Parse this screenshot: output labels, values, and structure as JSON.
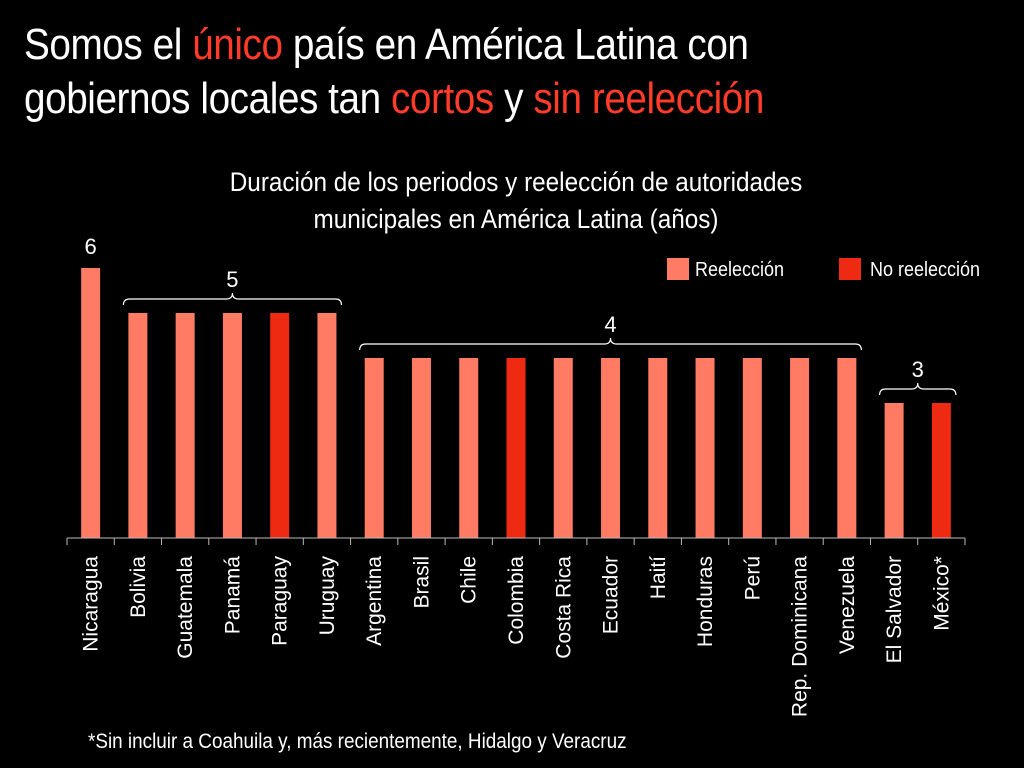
{
  "slide": {
    "title_line1": [
      {
        "text": "Somos el ",
        "highlight": false
      },
      {
        "text": "único",
        "highlight": true
      },
      {
        "text": " país en América Latina con",
        "highlight": false
      }
    ],
    "title_line2": [
      {
        "text": "gobiernos locales tan ",
        "highlight": false
      },
      {
        "text": "cortos",
        "highlight": true
      },
      {
        "text": " y ",
        "highlight": false
      },
      {
        "text": "sin reelección",
        "highlight": true
      }
    ],
    "footnote": "*Sin incluir a Coahuila y, más recientemente, Hidalgo y Veracruz"
  },
  "colors": {
    "background": "#000000",
    "text": "#ffffff",
    "highlight": "#ff3b2a",
    "reeleccion": "#ff7b64",
    "no_reeleccion": "#ee2a12",
    "axis": "#bbbbbb"
  },
  "chart_data": {
    "type": "bar",
    "title_line1": "Duración de los periodos y reelección de autoridades",
    "title_line2": "municipales en América Latina (años)",
    "xlabel": "",
    "ylabel": "",
    "ylim": [
      0,
      6
    ],
    "grid": false,
    "legend_position": "top-right",
    "legend": [
      {
        "key": "reeleccion",
        "label": "Reelección"
      },
      {
        "key": "no_reeleccion",
        "label": "No reelección"
      }
    ],
    "categories": [
      "Nicaragua",
      "Bolivia",
      "Guatemala",
      "Panamá",
      "Paraguay",
      "Uruguay",
      "Argentina",
      "Brasil",
      "Chile",
      "Colombia",
      "Costa Rica",
      "Ecuador",
      "Haití",
      "Honduras",
      "Perú",
      "Rep. Dominicana",
      "Venezuela",
      "El Salvador",
      "México*"
    ],
    "values": [
      6,
      5,
      5,
      5,
      5,
      5,
      4,
      4,
      4,
      4,
      4,
      4,
      4,
      4,
      4,
      4,
      4,
      3,
      3
    ],
    "groups": [
      "reeleccion",
      "reeleccion",
      "reeleccion",
      "reeleccion",
      "no_reeleccion",
      "reeleccion",
      "reeleccion",
      "reeleccion",
      "reeleccion",
      "no_reeleccion",
      "reeleccion",
      "reeleccion",
      "reeleccion",
      "reeleccion",
      "reeleccion",
      "reeleccion",
      "reeleccion",
      "reeleccion",
      "no_reeleccion"
    ],
    "annotations": [
      {
        "label": "6",
        "from": 0,
        "to": 0,
        "brace": false
      },
      {
        "label": "5",
        "from": 1,
        "to": 5,
        "brace": true
      },
      {
        "label": "4",
        "from": 6,
        "to": 16,
        "brace": true
      },
      {
        "label": "3",
        "from": 17,
        "to": 18,
        "brace": true
      }
    ]
  }
}
